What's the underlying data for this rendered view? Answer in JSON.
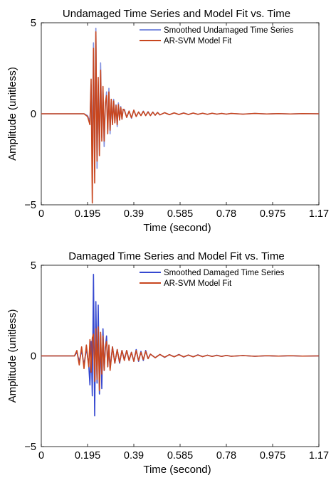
{
  "chart_data": [
    {
      "type": "line",
      "title": "Undamaged Time Series and Model Fit vs. Time",
      "xlabel": "Time (second)",
      "ylabel": "Amplitude (unitless)",
      "xlim": [
        0,
        1.17
      ],
      "ylim": [
        -5,
        5
      ],
      "xticks": [
        0,
        0.195,
        0.39,
        0.585,
        0.78,
        0.975,
        1.17
      ],
      "xtick_labels": [
        "0",
        "0.195",
        "0.39",
        "0.585",
        "0.78",
        "0.975",
        "1.17"
      ],
      "yticks": [
        -5,
        0,
        5
      ],
      "ytick_labels": [
        "−5",
        "0",
        "5"
      ],
      "grid": false,
      "legend_position": "top-right",
      "series": [
        {
          "name": "Smoothed Undamaged Time Series",
          "color": "#7f8fe0",
          "x": [
            0,
            0.18,
            0.195,
            0.205,
            0.21,
            0.215,
            0.22,
            0.225,
            0.23,
            0.235,
            0.24,
            0.245,
            0.25,
            0.255,
            0.26,
            0.265,
            0.27,
            0.275,
            0.28,
            0.285,
            0.29,
            0.295,
            0.3,
            0.305,
            0.31,
            0.315,
            0.32,
            0.325,
            0.33,
            0.335,
            0.34,
            0.345,
            0.35,
            0.36,
            0.37,
            0.38,
            0.39,
            0.4,
            0.41,
            0.42,
            0.43,
            0.44,
            0.45,
            0.46,
            0.47,
            0.48,
            0.49,
            0.5,
            0.52,
            0.54,
            0.56,
            0.58,
            0.6,
            0.62,
            0.64,
            0.66,
            0.68,
            0.7,
            0.72,
            0.74,
            0.76,
            0.78,
            0.8,
            0.85,
            0.9,
            0.95,
            1.0,
            1.05,
            1.1,
            1.17
          ],
          "y": [
            0,
            0,
            -0.1,
            -0.4,
            1.6,
            -2.2,
            3.9,
            -3.2,
            4.7,
            -3.0,
            1.6,
            -2.0,
            2.8,
            -1.3,
            1.3,
            -1.8,
            0.4,
            1.2,
            -0.9,
            1.4,
            -1.1,
            0.7,
            -0.5,
            0.8,
            -0.4,
            0.5,
            -0.7,
            0.6,
            -0.3,
            0.4,
            -0.3,
            0.2,
            0.25,
            -0.2,
            0.15,
            -0.25,
            0.2,
            -0.15,
            0.1,
            -0.1,
            0.15,
            -0.1,
            0.12,
            -0.1,
            0.1,
            -0.08,
            0.08,
            -0.06,
            0.06,
            -0.05,
            0.05,
            -0.04,
            0.05,
            -0.04,
            0.04,
            -0.03,
            0.03,
            -0.03,
            0.03,
            -0.02,
            0.02,
            -0.02,
            0.02,
            -0.02,
            0.02,
            -0.01,
            0.01,
            -0.01,
            0.01,
            0
          ]
        },
        {
          "name": "AR-SVM Model Fit",
          "color": "#c8461e",
          "x": [
            0,
            0.18,
            0.195,
            0.205,
            0.21,
            0.215,
            0.22,
            0.225,
            0.23,
            0.235,
            0.24,
            0.245,
            0.25,
            0.255,
            0.26,
            0.265,
            0.27,
            0.275,
            0.28,
            0.285,
            0.29,
            0.295,
            0.3,
            0.305,
            0.31,
            0.315,
            0.32,
            0.325,
            0.33,
            0.335,
            0.34,
            0.345,
            0.35,
            0.36,
            0.37,
            0.38,
            0.39,
            0.4,
            0.41,
            0.42,
            0.43,
            0.44,
            0.45,
            0.46,
            0.47,
            0.48,
            0.49,
            0.5,
            0.52,
            0.54,
            0.56,
            0.58,
            0.6,
            0.62,
            0.64,
            0.66,
            0.68,
            0.7,
            0.72,
            0.74,
            0.76,
            0.78,
            0.8,
            0.85,
            0.9,
            0.95,
            1.0,
            1.05,
            1.1,
            1.17
          ],
          "y": [
            0,
            0,
            -0.15,
            -0.6,
            1.9,
            -4.9,
            3.6,
            -3.8,
            4.5,
            -2.6,
            2.0,
            -2.3,
            2.4,
            -1.5,
            1.5,
            -1.5,
            0.6,
            1.0,
            -1.1,
            1.2,
            -0.9,
            0.8,
            -0.6,
            0.7,
            -0.5,
            0.45,
            -0.6,
            0.5,
            -0.35,
            0.35,
            -0.3,
            0.25,
            0.2,
            -0.2,
            0.15,
            -0.22,
            0.2,
            -0.15,
            0.1,
            -0.1,
            0.13,
            -0.1,
            0.1,
            -0.1,
            0.09,
            -0.08,
            0.07,
            -0.06,
            0.06,
            -0.05,
            0.05,
            -0.04,
            0.04,
            -0.04,
            0.04,
            -0.03,
            0.03,
            -0.03,
            0.03,
            -0.02,
            0.02,
            -0.02,
            0.02,
            -0.02,
            0.02,
            -0.01,
            0.01,
            -0.01,
            0.01,
            0
          ]
        }
      ]
    },
    {
      "type": "line",
      "title": "Damaged Time Series and Model Fit vs. Time",
      "xlabel": "Time (second)",
      "ylabel": "Amplitude (unitless)",
      "xlim": [
        0,
        1.17
      ],
      "ylim": [
        -5,
        5
      ],
      "xticks": [
        0,
        0.195,
        0.39,
        0.585,
        0.78,
        0.975,
        1.17
      ],
      "xtick_labels": [
        "0",
        "0.195",
        "0.39",
        "0.585",
        "0.78",
        "0.975",
        "1.17"
      ],
      "yticks": [
        -5,
        0,
        5
      ],
      "ytick_labels": [
        "−5",
        "0",
        "5"
      ],
      "grid": false,
      "legend_position": "top-right",
      "series": [
        {
          "name": "Smoothed Damaged Time Series",
          "color": "#3548d0",
          "x": [
            0,
            0.14,
            0.15,
            0.16,
            0.17,
            0.18,
            0.19,
            0.2,
            0.205,
            0.21,
            0.215,
            0.22,
            0.225,
            0.23,
            0.235,
            0.24,
            0.245,
            0.25,
            0.255,
            0.26,
            0.265,
            0.27,
            0.275,
            0.28,
            0.285,
            0.29,
            0.3,
            0.31,
            0.32,
            0.33,
            0.34,
            0.35,
            0.36,
            0.37,
            0.38,
            0.39,
            0.4,
            0.41,
            0.42,
            0.43,
            0.44,
            0.45,
            0.46,
            0.48,
            0.5,
            0.52,
            0.54,
            0.56,
            0.58,
            0.6,
            0.62,
            0.64,
            0.66,
            0.68,
            0.7,
            0.72,
            0.74,
            0.76,
            0.78,
            0.8,
            0.85,
            0.9,
            0.95,
            1.0,
            1.05,
            1.1,
            1.17
          ],
          "y": [
            0,
            0,
            0.2,
            -0.3,
            0.3,
            -0.5,
            0.4,
            -0.5,
            -1.6,
            0.8,
            -2.2,
            4.5,
            -3.3,
            3.0,
            -1.5,
            2.8,
            -2.1,
            1.2,
            -1.8,
            1.5,
            -0.8,
            0.4,
            1.1,
            -0.6,
            0.5,
            -0.7,
            0.5,
            -0.4,
            0.35,
            -0.4,
            0.3,
            -0.2,
            0.3,
            -0.25,
            0.2,
            -0.3,
            0.35,
            -0.3,
            0.25,
            -0.25,
            0.3,
            -0.15,
            0.1,
            -0.1,
            0.08,
            -0.08,
            0.07,
            -0.05,
            0.08,
            -0.06,
            0.05,
            -0.05,
            0.06,
            -0.04,
            0.04,
            -0.03,
            0.04,
            -0.03,
            0.03,
            -0.02,
            0.02,
            -0.02,
            0.01,
            -0.01,
            0.01,
            -0.01,
            0
          ]
        },
        {
          "name": "AR-SVM Model Fit",
          "color": "#c8461e",
          "x": [
            0,
            0.14,
            0.15,
            0.16,
            0.17,
            0.18,
            0.19,
            0.2,
            0.205,
            0.21,
            0.215,
            0.22,
            0.225,
            0.23,
            0.235,
            0.24,
            0.245,
            0.25,
            0.255,
            0.26,
            0.265,
            0.27,
            0.275,
            0.28,
            0.285,
            0.29,
            0.3,
            0.31,
            0.32,
            0.33,
            0.34,
            0.35,
            0.36,
            0.37,
            0.38,
            0.39,
            0.4,
            0.41,
            0.42,
            0.43,
            0.44,
            0.45,
            0.46,
            0.48,
            0.5,
            0.52,
            0.54,
            0.56,
            0.58,
            0.6,
            0.62,
            0.64,
            0.66,
            0.68,
            0.7,
            0.72,
            0.74,
            0.76,
            0.78,
            0.8,
            0.85,
            0.9,
            0.95,
            1.0,
            1.05,
            1.1,
            1.17
          ],
          "y": [
            0,
            0,
            0.3,
            -0.5,
            0.5,
            -0.7,
            0.6,
            -0.6,
            0.9,
            -0.9,
            1.0,
            1.2,
            -1.4,
            1.5,
            -1.3,
            1.6,
            -1.9,
            1.3,
            -1.0,
            1.1,
            -0.8,
            0.5,
            0.8,
            -0.6,
            0.6,
            -0.8,
            0.5,
            -0.4,
            0.35,
            -0.35,
            0.3,
            -0.25,
            0.3,
            -0.25,
            0.2,
            -0.3,
            0.3,
            -0.25,
            0.2,
            -0.2,
            0.25,
            -0.15,
            0.1,
            -0.1,
            0.08,
            -0.07,
            0.07,
            -0.05,
            0.07,
            -0.05,
            0.05,
            -0.05,
            0.05,
            -0.04,
            0.04,
            -0.03,
            0.03,
            -0.03,
            0.03,
            -0.02,
            0.02,
            -0.02,
            0.01,
            -0.01,
            0.01,
            -0.01,
            0
          ]
        }
      ]
    }
  ]
}
